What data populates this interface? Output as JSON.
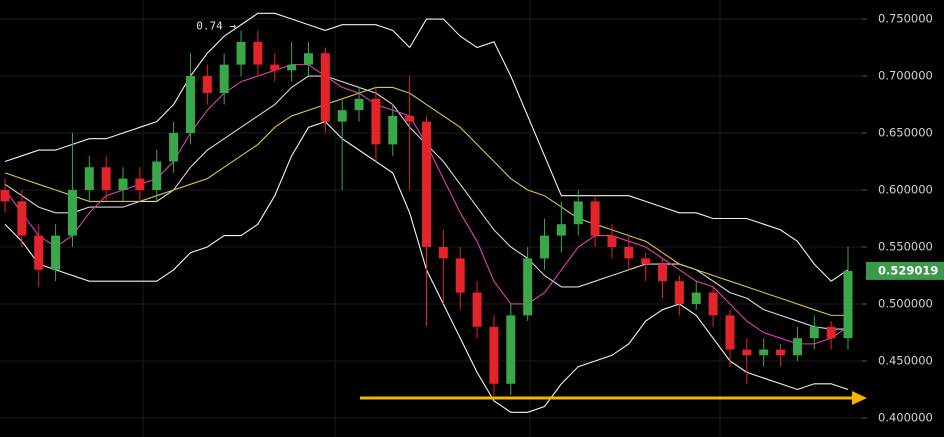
{
  "chart_data": {
    "type": "candlestick",
    "annotation": "0.74 →",
    "up_color": "#3aa84a",
    "down_color": "#e3242b",
    "ylim": [
      0.3833,
      0.7667
    ],
    "yticks": [
      {
        "value": 0.4,
        "label": "0.400000"
      },
      {
        "value": 0.45,
        "label": "0.450000"
      },
      {
        "value": 0.5,
        "label": "0.500000"
      },
      {
        "value": 0.55,
        "label": "0.550000"
      },
      {
        "value": 0.6,
        "label": "0.600000"
      },
      {
        "value": 0.65,
        "label": "0.650000"
      },
      {
        "value": 0.7,
        "label": "0.700000"
      },
      {
        "value": 0.75,
        "label": "0.750000"
      }
    ],
    "grid": true,
    "open": [
      0.6,
      0.59,
      0.56,
      0.53,
      0.56,
      0.6,
      0.62,
      0.6,
      0.61,
      0.6,
      0.625,
      0.65,
      0.7,
      0.685,
      0.71,
      0.73,
      0.71,
      0.705,
      0.71,
      0.72,
      0.66,
      0.67,
      0.68,
      0.64,
      0.665,
      0.66,
      0.55,
      0.54,
      0.51,
      0.48,
      0.43,
      0.49,
      0.54,
      0.56,
      0.57,
      0.59,
      0.56,
      0.55,
      0.54,
      0.535,
      0.52,
      0.5,
      0.51,
      0.49,
      0.46,
      0.455,
      0.46,
      0.455,
      0.47,
      0.48,
      0.47
    ],
    "high": [
      0.61,
      0.6,
      0.57,
      0.57,
      0.65,
      0.63,
      0.63,
      0.62,
      0.62,
      0.635,
      0.66,
      0.72,
      0.71,
      0.72,
      0.74,
      0.74,
      0.72,
      0.73,
      0.73,
      0.725,
      0.68,
      0.69,
      0.69,
      0.675,
      0.7,
      0.665,
      0.565,
      0.55,
      0.52,
      0.49,
      0.5,
      0.55,
      0.575,
      0.59,
      0.6,
      0.595,
      0.57,
      0.56,
      0.545,
      0.54,
      0.525,
      0.52,
      0.515,
      0.495,
      0.47,
      0.47,
      0.465,
      0.48,
      0.49,
      0.485,
      0.55
    ],
    "low": [
      0.58,
      0.55,
      0.515,
      0.52,
      0.55,
      0.59,
      0.59,
      0.59,
      0.59,
      0.59,
      0.615,
      0.64,
      0.675,
      0.675,
      0.7,
      0.7,
      0.695,
      0.695,
      0.7,
      0.65,
      0.6,
      0.66,
      0.625,
      0.63,
      0.6,
      0.48,
      0.5,
      0.495,
      0.47,
      0.42,
      0.42,
      0.485,
      0.53,
      0.545,
      0.56,
      0.55,
      0.54,
      0.53,
      0.52,
      0.505,
      0.49,
      0.495,
      0.48,
      0.445,
      0.43,
      0.445,
      0.445,
      0.45,
      0.46,
      0.46,
      0.46
    ],
    "close": [
      0.59,
      0.56,
      0.53,
      0.56,
      0.6,
      0.62,
      0.6,
      0.61,
      0.6,
      0.625,
      0.65,
      0.7,
      0.685,
      0.71,
      0.73,
      0.71,
      0.705,
      0.71,
      0.72,
      0.66,
      0.67,
      0.68,
      0.64,
      0.665,
      0.66,
      0.55,
      0.54,
      0.51,
      0.48,
      0.43,
      0.49,
      0.54,
      0.56,
      0.57,
      0.59,
      0.56,
      0.55,
      0.54,
      0.535,
      0.52,
      0.5,
      0.51,
      0.49,
      0.46,
      0.455,
      0.46,
      0.455,
      0.47,
      0.48,
      0.47,
      0.529019
    ],
    "last_price_color": "#3a9a4a",
    "indicators": [
      {
        "color": "#f2f2f2",
        "values": [
          0.625,
          0.63,
          0.635,
          0.635,
          0.64,
          0.645,
          0.645,
          0.65,
          0.655,
          0.66,
          0.675,
          0.7,
          0.72,
          0.735,
          0.745,
          0.755,
          0.755,
          0.75,
          0.745,
          0.74,
          0.745,
          0.745,
          0.745,
          0.74,
          0.725,
          0.75,
          0.75,
          0.735,
          0.725,
          0.73,
          0.7,
          0.665,
          0.63,
          0.595,
          0.595,
          0.595,
          0.595,
          0.595,
          0.59,
          0.585,
          0.58,
          0.58,
          0.575,
          0.575,
          0.575,
          0.57,
          0.565,
          0.555,
          0.535,
          0.52,
          0.53
        ]
      },
      {
        "color": "#f2f2f2",
        "values": [
          0.57,
          0.555,
          0.535,
          0.53,
          0.525,
          0.52,
          0.52,
          0.52,
          0.52,
          0.52,
          0.53,
          0.545,
          0.55,
          0.56,
          0.56,
          0.57,
          0.595,
          0.63,
          0.655,
          0.66,
          0.645,
          0.635,
          0.625,
          0.615,
          0.58,
          0.53,
          0.5,
          0.47,
          0.44,
          0.415,
          0.405,
          0.405,
          0.41,
          0.43,
          0.445,
          0.45,
          0.455,
          0.465,
          0.485,
          0.495,
          0.5,
          0.49,
          0.47,
          0.45,
          0.44,
          0.435,
          0.43,
          0.425,
          0.43,
          0.43,
          0.425
        ]
      },
      {
        "color": "#d8d8d8",
        "values": [
          0.605,
          0.595,
          0.585,
          0.58,
          0.58,
          0.585,
          0.585,
          0.585,
          0.59,
          0.59,
          0.6,
          0.62,
          0.635,
          0.645,
          0.655,
          0.665,
          0.675,
          0.69,
          0.7,
          0.7,
          0.695,
          0.69,
          0.685,
          0.675,
          0.655,
          0.64,
          0.625,
          0.605,
          0.585,
          0.565,
          0.55,
          0.54,
          0.525,
          0.515,
          0.515,
          0.52,
          0.525,
          0.53,
          0.535,
          0.535,
          0.535,
          0.53,
          0.52,
          0.51,
          0.505,
          0.495,
          0.49,
          0.485,
          0.48,
          0.478,
          0.478
        ]
      },
      {
        "color": "#d9c44a",
        "values": [
          0.615,
          0.61,
          0.605,
          0.6,
          0.595,
          0.59,
          0.59,
          0.59,
          0.59,
          0.595,
          0.6,
          0.605,
          0.61,
          0.62,
          0.63,
          0.64,
          0.655,
          0.665,
          0.67,
          0.675,
          0.68,
          0.685,
          0.69,
          0.69,
          0.685,
          0.675,
          0.665,
          0.655,
          0.64,
          0.625,
          0.61,
          0.6,
          0.595,
          0.585,
          0.575,
          0.57,
          0.565,
          0.56,
          0.555,
          0.545,
          0.535,
          0.53,
          0.525,
          0.52,
          0.515,
          0.51,
          0.505,
          0.5,
          0.495,
          0.49,
          0.49
        ]
      },
      {
        "color": "#e040b0",
        "values": [
          0.6,
          0.58,
          0.56,
          0.55,
          0.56,
          0.58,
          0.595,
          0.6,
          0.605,
          0.61,
          0.625,
          0.65,
          0.67,
          0.685,
          0.695,
          0.7,
          0.705,
          0.71,
          0.71,
          0.7,
          0.69,
          0.685,
          0.675,
          0.67,
          0.665,
          0.64,
          0.61,
          0.58,
          0.555,
          0.52,
          0.5,
          0.5,
          0.51,
          0.53,
          0.55,
          0.56,
          0.56,
          0.555,
          0.55,
          0.54,
          0.53,
          0.52,
          0.515,
          0.5,
          0.485,
          0.475,
          0.47,
          0.465,
          0.465,
          0.47,
          0.48
        ]
      }
    ]
  }
}
